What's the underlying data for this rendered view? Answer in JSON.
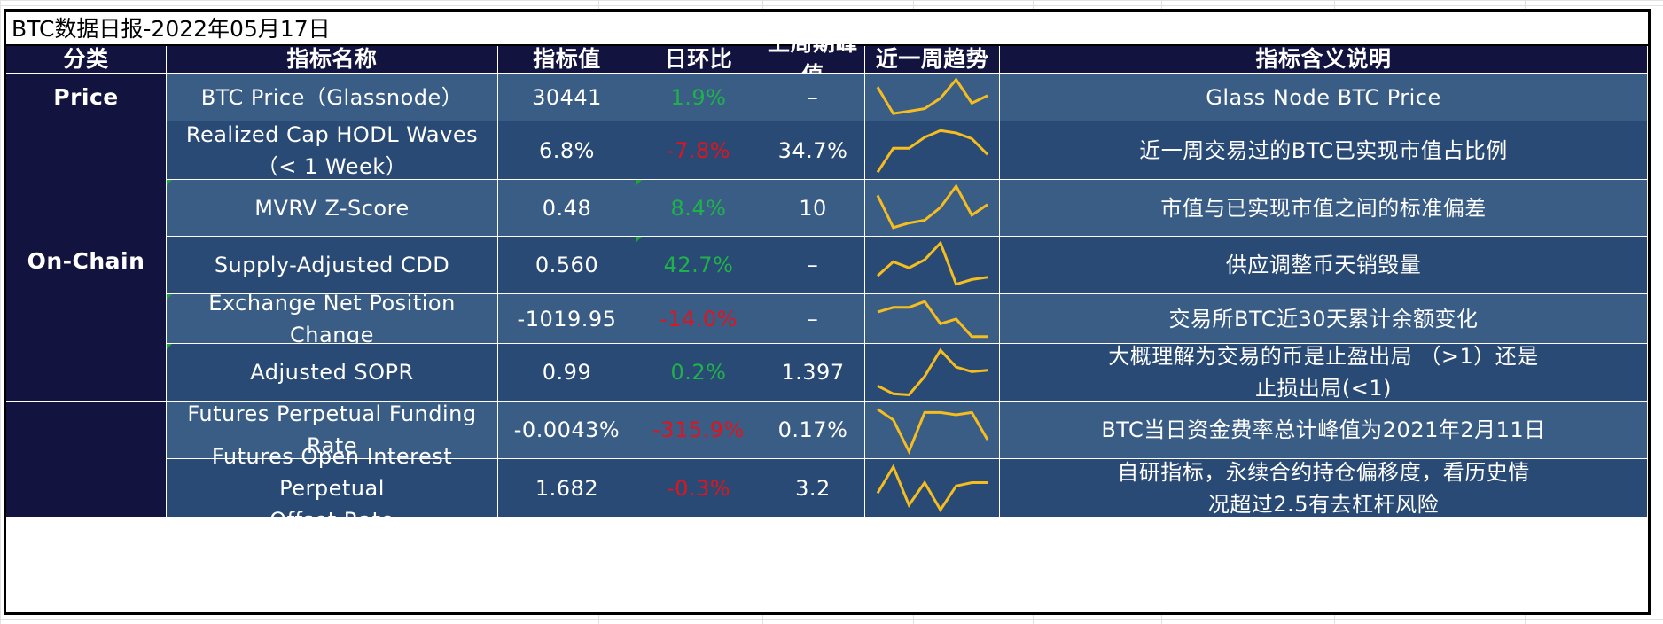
{
  "title": "BTC数据日报-2022年05月17日",
  "headers": [
    "分类",
    "指标名称",
    "指标值",
    "日环比",
    "上周期峰值",
    "近一周趋势",
    "指标含义说明"
  ],
  "categories": {
    "price": "Price",
    "onchain": "On-Chain",
    "derivatives": ""
  },
  "rows": [
    {
      "name": "BTC Price（Glassnode）",
      "name2": "",
      "value": "30441",
      "change": "1.9%",
      "dir": "up",
      "peak": "–",
      "desc": "Glass Node BTC Price",
      "desc2": "",
      "trend": [
        0.78,
        0.07,
        0.13,
        0.2,
        0.48,
        0.98,
        0.35,
        0.55
      ]
    },
    {
      "name": "Realized Cap HODL Waves",
      "name2": "（< 1 Week）",
      "value": "6.8%",
      "change": "-7.8%",
      "dir": "down",
      "peak": "34.7%",
      "desc": "近一周交易过的BTC已实现市值占比例",
      "desc2": "",
      "trend": [
        0.05,
        0.55,
        0.55,
        0.78,
        0.92,
        0.87,
        0.75,
        0.42
      ]
    },
    {
      "name": "MVRV Z-Score",
      "name2": "",
      "value": "0.48",
      "change": "8.4%",
      "dir": "up",
      "peak": "10",
      "desc": "市值与已实现市值之间的标准偏差",
      "desc2": "",
      "trend": [
        0.78,
        0.08,
        0.18,
        0.24,
        0.52,
        0.98,
        0.35,
        0.58
      ]
    },
    {
      "name": "Supply-Adjusted CDD",
      "name2": "",
      "value": "0.560",
      "change": "42.7%",
      "dir": "up",
      "peak": "–",
      "desc": "供应调整币天销毁量",
      "desc2": "",
      "trend": [
        0.28,
        0.58,
        0.45,
        0.62,
        0.98,
        0.1,
        0.2,
        0.25
      ]
    },
    {
      "name": "Exchange Net Position Change",
      "name2": "",
      "value": "-1019.95",
      "change": "-14.0%",
      "dir": "down",
      "peak": "–",
      "desc": "交易所BTC近30天累计余额变化",
      "desc2": "",
      "trend": [
        0.68,
        0.8,
        0.8,
        0.95,
        0.38,
        0.5,
        0.05,
        0.05
      ]
    },
    {
      "name": "Adjusted SOPR",
      "name2": "",
      "value": "0.99",
      "change": "0.2%",
      "dir": "up",
      "peak": "1.397",
      "desc": "大概理解为交易的币是止盈出局 （>1）还是",
      "desc2": "止损出局(<1)",
      "trend": [
        0.22,
        0.05,
        0.03,
        0.42,
        0.98,
        0.62,
        0.52,
        0.55
      ]
    },
    {
      "name": "Futures Perpetual Funding Rate",
      "name2": "",
      "value": "-0.0043%",
      "change": "-315.9%",
      "dir": "down",
      "peak": "0.17%",
      "desc": "BTC当日资金费率总计峰值为2021年2月11日",
      "desc2": "",
      "trend": [
        0.95,
        0.72,
        0.05,
        0.88,
        0.88,
        0.83,
        0.88,
        0.3
      ]
    },
    {
      "name": "Futures Open Interest Perpetual",
      "name2": "Offset Rate",
      "value": "1.682",
      "change": "-0.3%",
      "dir": "down",
      "peak": "3.2",
      "desc": "自研指标，永续合约持仓偏移度，看历史情",
      "desc2": "况超过2.5有去杠杆风险",
      "trend": [
        0.4,
        0.95,
        0.15,
        0.62,
        0.05,
        0.55,
        0.62,
        0.62
      ]
    }
  ],
  "colors": {
    "header_bg": "#13133f",
    "band_a": "#3a5d86",
    "band_b": "#294a74",
    "up": "#1fb24a",
    "down": "#e0141e",
    "spark": "#f5bd1f"
  }
}
